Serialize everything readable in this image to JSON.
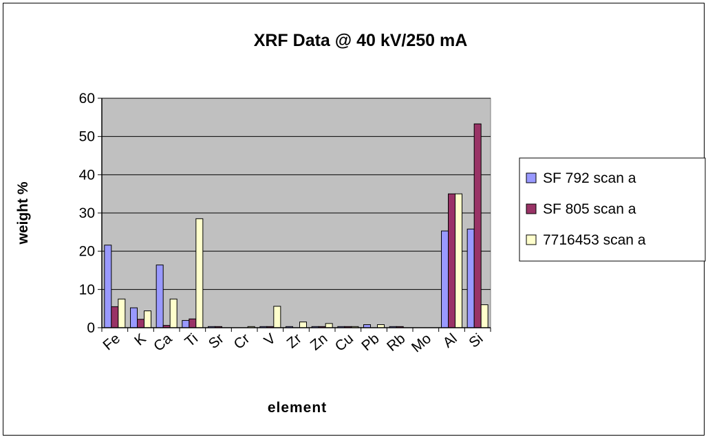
{
  "chart_data": {
    "type": "bar",
    "title": "XRF Data @ 40 kV/250 mA",
    "xlabel": "element",
    "ylabel": "weight %",
    "ylim": [
      0,
      60
    ],
    "yticks": [
      0,
      10,
      20,
      30,
      40,
      50,
      60
    ],
    "categories": [
      "Fe",
      "K",
      "Ca",
      "Ti",
      "Sr",
      "Cr",
      "V",
      "Zr",
      "Zn",
      "Cu",
      "Pb",
      "Rb",
      "Mo",
      "Al",
      "Si"
    ],
    "series": [
      {
        "name": "SF 792 scan a",
        "color": "#9999FF",
        "values": [
          21.6,
          5.2,
          16.4,
          1.9,
          0.3,
          0,
          0.3,
          0.3,
          0.3,
          0.3,
          0.8,
          0.3,
          0,
          25.3,
          25.8
        ]
      },
      {
        "name": "SF 805 scan a",
        "color": "#993366",
        "values": [
          5.5,
          2.2,
          0.6,
          2.3,
          0.3,
          0,
          0.3,
          0,
          0.3,
          0.3,
          0,
          0.3,
          0,
          35.0,
          53.3
        ]
      },
      {
        "name": "7716453 scan a",
        "color": "#FFFFCC",
        "values": [
          7.5,
          4.4,
          7.5,
          28.5,
          0,
          0.3,
          5.6,
          1.5,
          1.1,
          0.3,
          0.8,
          0,
          0,
          35.0,
          6.0
        ]
      }
    ],
    "plot_background": "#C0C0C0",
    "grid": "horizontal",
    "legend_position": "right"
  }
}
